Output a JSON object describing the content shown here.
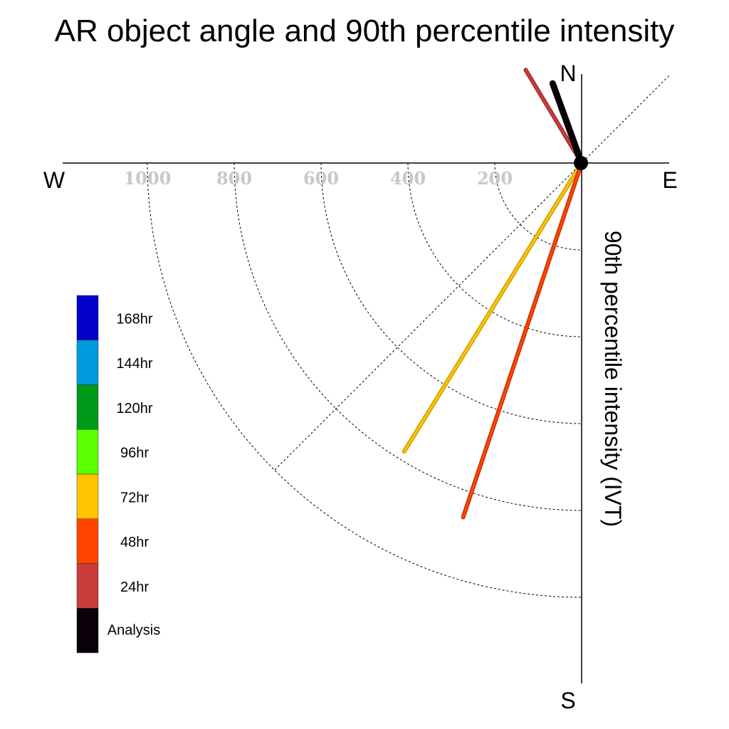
{
  "chart_data": {
    "type": "polar-vector",
    "title": "AR object angle and 90th percentile intensity",
    "ylabel": "90th percentile intensity (IVT)",
    "compass": {
      "north": "N",
      "south": "S",
      "east": "E",
      "west": "W"
    },
    "radial_ticks": [
      200,
      400,
      600,
      1000,
      800
    ],
    "radial_tick_order": [
      1000,
      800,
      600,
      400,
      200
    ],
    "r_max": 1200,
    "grid": true,
    "legend_position": "left",
    "legend": [
      {
        "label": "168hr",
        "color": "#0000C8"
      },
      {
        "label": "144hr",
        "color": "#009ADE"
      },
      {
        "label": "120hr",
        "color": "#009A1A"
      },
      {
        "label": "96hr",
        "color": "#5AFF00"
      },
      {
        "label": "72hr",
        "color": "#FFC300"
      },
      {
        "label": "48hr",
        "color": "#FF4500"
      },
      {
        "label": "24hr",
        "color": "#C83C3C"
      },
      {
        "label": "Analysis",
        "color": "#0A0008"
      }
    ],
    "series": [
      {
        "name": "72hr",
        "angle_deg": 211.6,
        "intensity": 780,
        "color": "#FFC300",
        "outline": "#C8A000"
      },
      {
        "name": "48hr",
        "angle_deg": 198.5,
        "intensity": 860,
        "color": "#FF4500",
        "outline": "#C83200"
      },
      {
        "name": "24hr",
        "angle_deg": 329,
        "intensity": 250,
        "color": "#C83C3C",
        "outline": "#A03030"
      },
      {
        "name": "Analysis",
        "angle_deg": 340,
        "intensity": 195,
        "color": "#0A0008",
        "outline": "#0A0008"
      }
    ]
  }
}
